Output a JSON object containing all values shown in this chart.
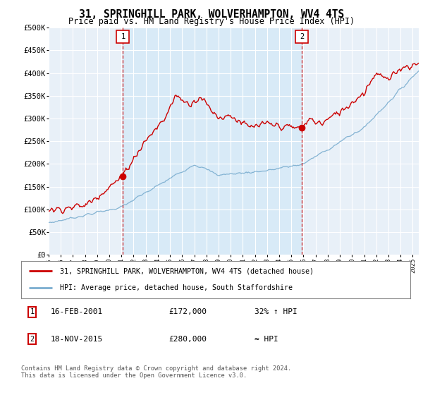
{
  "title": "31, SPRINGHILL PARK, WOLVERHAMPTON, WV4 4TS",
  "subtitle": "Price paid vs. HM Land Registry's House Price Index (HPI)",
  "ylabel_ticks": [
    "£0",
    "£50K",
    "£100K",
    "£150K",
    "£200K",
    "£250K",
    "£300K",
    "£350K",
    "£400K",
    "£450K",
    "£500K"
  ],
  "ylim": [
    0,
    500000
  ],
  "xlim_start": 1995.0,
  "xlim_end": 2025.5,
  "red_line_color": "#cc0000",
  "blue_line_color": "#7aadcf",
  "shade_color": "#d8eaf7",
  "plot_bg": "#e8f0f8",
  "grid_color": "#ffffff",
  "marker1_x": 2001.12,
  "marker1_y": 172000,
  "marker2_x": 2015.88,
  "marker2_y": 280000,
  "legend_red_label": "31, SPRINGHILL PARK, WOLVERHAMPTON, WV4 4TS (detached house)",
  "legend_blue_label": "HPI: Average price, detached house, South Staffordshire",
  "table_row1": [
    "1",
    "16-FEB-2001",
    "£172,000",
    "32% ↑ HPI"
  ],
  "table_row2": [
    "2",
    "18-NOV-2015",
    "£280,000",
    "≈ HPI"
  ],
  "footer": "Contains HM Land Registry data © Crown copyright and database right 2024.\nThis data is licensed under the Open Government Licence v3.0.",
  "xtick_years": [
    1995,
    1996,
    1997,
    1998,
    1999,
    2000,
    2001,
    2002,
    2003,
    2004,
    2005,
    2006,
    2007,
    2008,
    2009,
    2010,
    2011,
    2012,
    2013,
    2014,
    2015,
    2016,
    2017,
    2018,
    2019,
    2020,
    2021,
    2022,
    2023,
    2024,
    2025
  ]
}
